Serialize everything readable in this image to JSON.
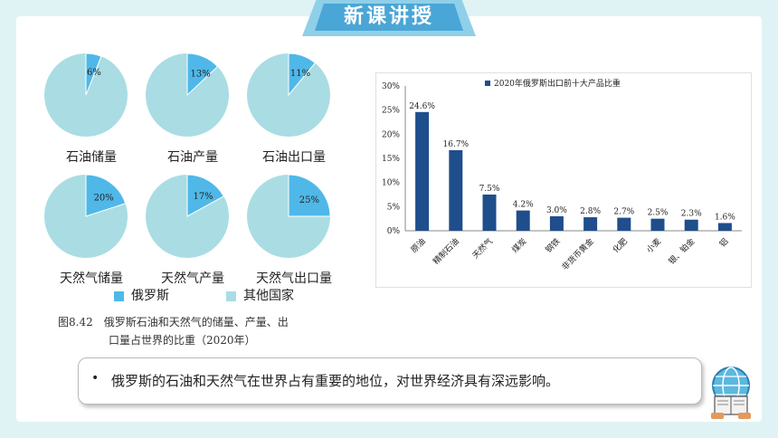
{
  "header": {
    "title": "新课讲授"
  },
  "pie_charts": [
    {
      "label": "石油储量",
      "russia_pct": 6,
      "value_label": "6%"
    },
    {
      "label": "石油产量",
      "russia_pct": 13,
      "value_label": "13%"
    },
    {
      "label": "石油出口量",
      "russia_pct": 11,
      "value_label": "11%"
    },
    {
      "label": "天然气储量",
      "russia_pct": 20,
      "value_label": "20%"
    },
    {
      "label": "天然气产量",
      "russia_pct": 17,
      "value_label": "17%"
    },
    {
      "label": "天然气出口量",
      "russia_pct": 25,
      "value_label": "25%"
    }
  ],
  "pie_legend": [
    {
      "name": "俄罗斯",
      "color": "#4fb8e8"
    },
    {
      "name": "其他国家",
      "color": "#a9dde3"
    }
  ],
  "caption": {
    "line1": "图8.42　俄罗斯石油和天然气的储量、产量、出",
    "line2": "口量占世界的比重（2020年）"
  },
  "chart_data": {
    "type": "bar",
    "legend": "2020年俄罗斯出口前十大产品比重",
    "categories": [
      "原油",
      "精制石油",
      "天然气",
      "煤炭",
      "钢铁",
      "非货币黄金",
      "化肥",
      "小麦",
      "银、铂金",
      "铝"
    ],
    "values": [
      24.6,
      16.7,
      7.5,
      4.2,
      3.0,
      2.8,
      2.7,
      2.5,
      2.3,
      1.6
    ],
    "value_labels": [
      "24.6%",
      "16.7%",
      "7.5%",
      "4.2%",
      "3.0%",
      "2.8%",
      "2.7%",
      "2.5%",
      "2.3%",
      "1.6%"
    ],
    "yticks": [
      "0%",
      "5%",
      "10%",
      "15%",
      "20%",
      "25%",
      "30%"
    ],
    "ylim": [
      0,
      30
    ],
    "bar_color": "#1f4e8c"
  },
  "note": {
    "bullet": "•",
    "text": "俄罗斯的石油和天然气在世界占有重要的地位，对世界经济具有深远影响。"
  }
}
